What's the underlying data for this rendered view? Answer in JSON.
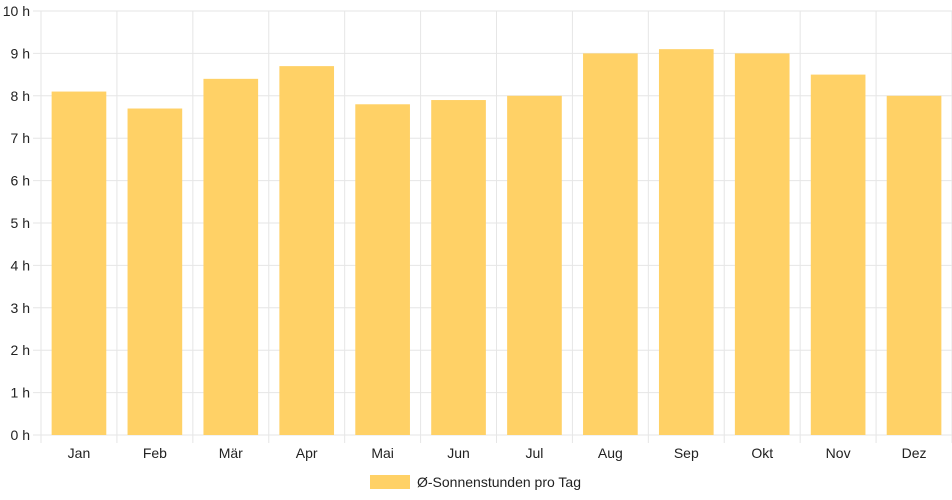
{
  "chart_data": {
    "type": "bar",
    "categories": [
      "Jan",
      "Feb",
      "Mär",
      "Apr",
      "Mai",
      "Jun",
      "Jul",
      "Aug",
      "Sep",
      "Okt",
      "Nov",
      "Dez"
    ],
    "series": [
      {
        "name": "Ø-Sonnenstunden pro Tag",
        "values": [
          8.1,
          7.7,
          8.4,
          8.7,
          7.8,
          7.9,
          8.0,
          9.0,
          9.1,
          9.0,
          8.5,
          8.0
        ]
      }
    ],
    "y_ticks": [
      "0 h",
      "1 h",
      "2 h",
      "3 h",
      "4 h",
      "5 h",
      "6 h",
      "7 h",
      "8 h",
      "9 h",
      "10 h"
    ],
    "ylim": [
      0,
      10
    ],
    "grid": true,
    "legend": "bottom-center",
    "bar_color": "#ffd166",
    "grid_color": "#e6e6e6"
  }
}
